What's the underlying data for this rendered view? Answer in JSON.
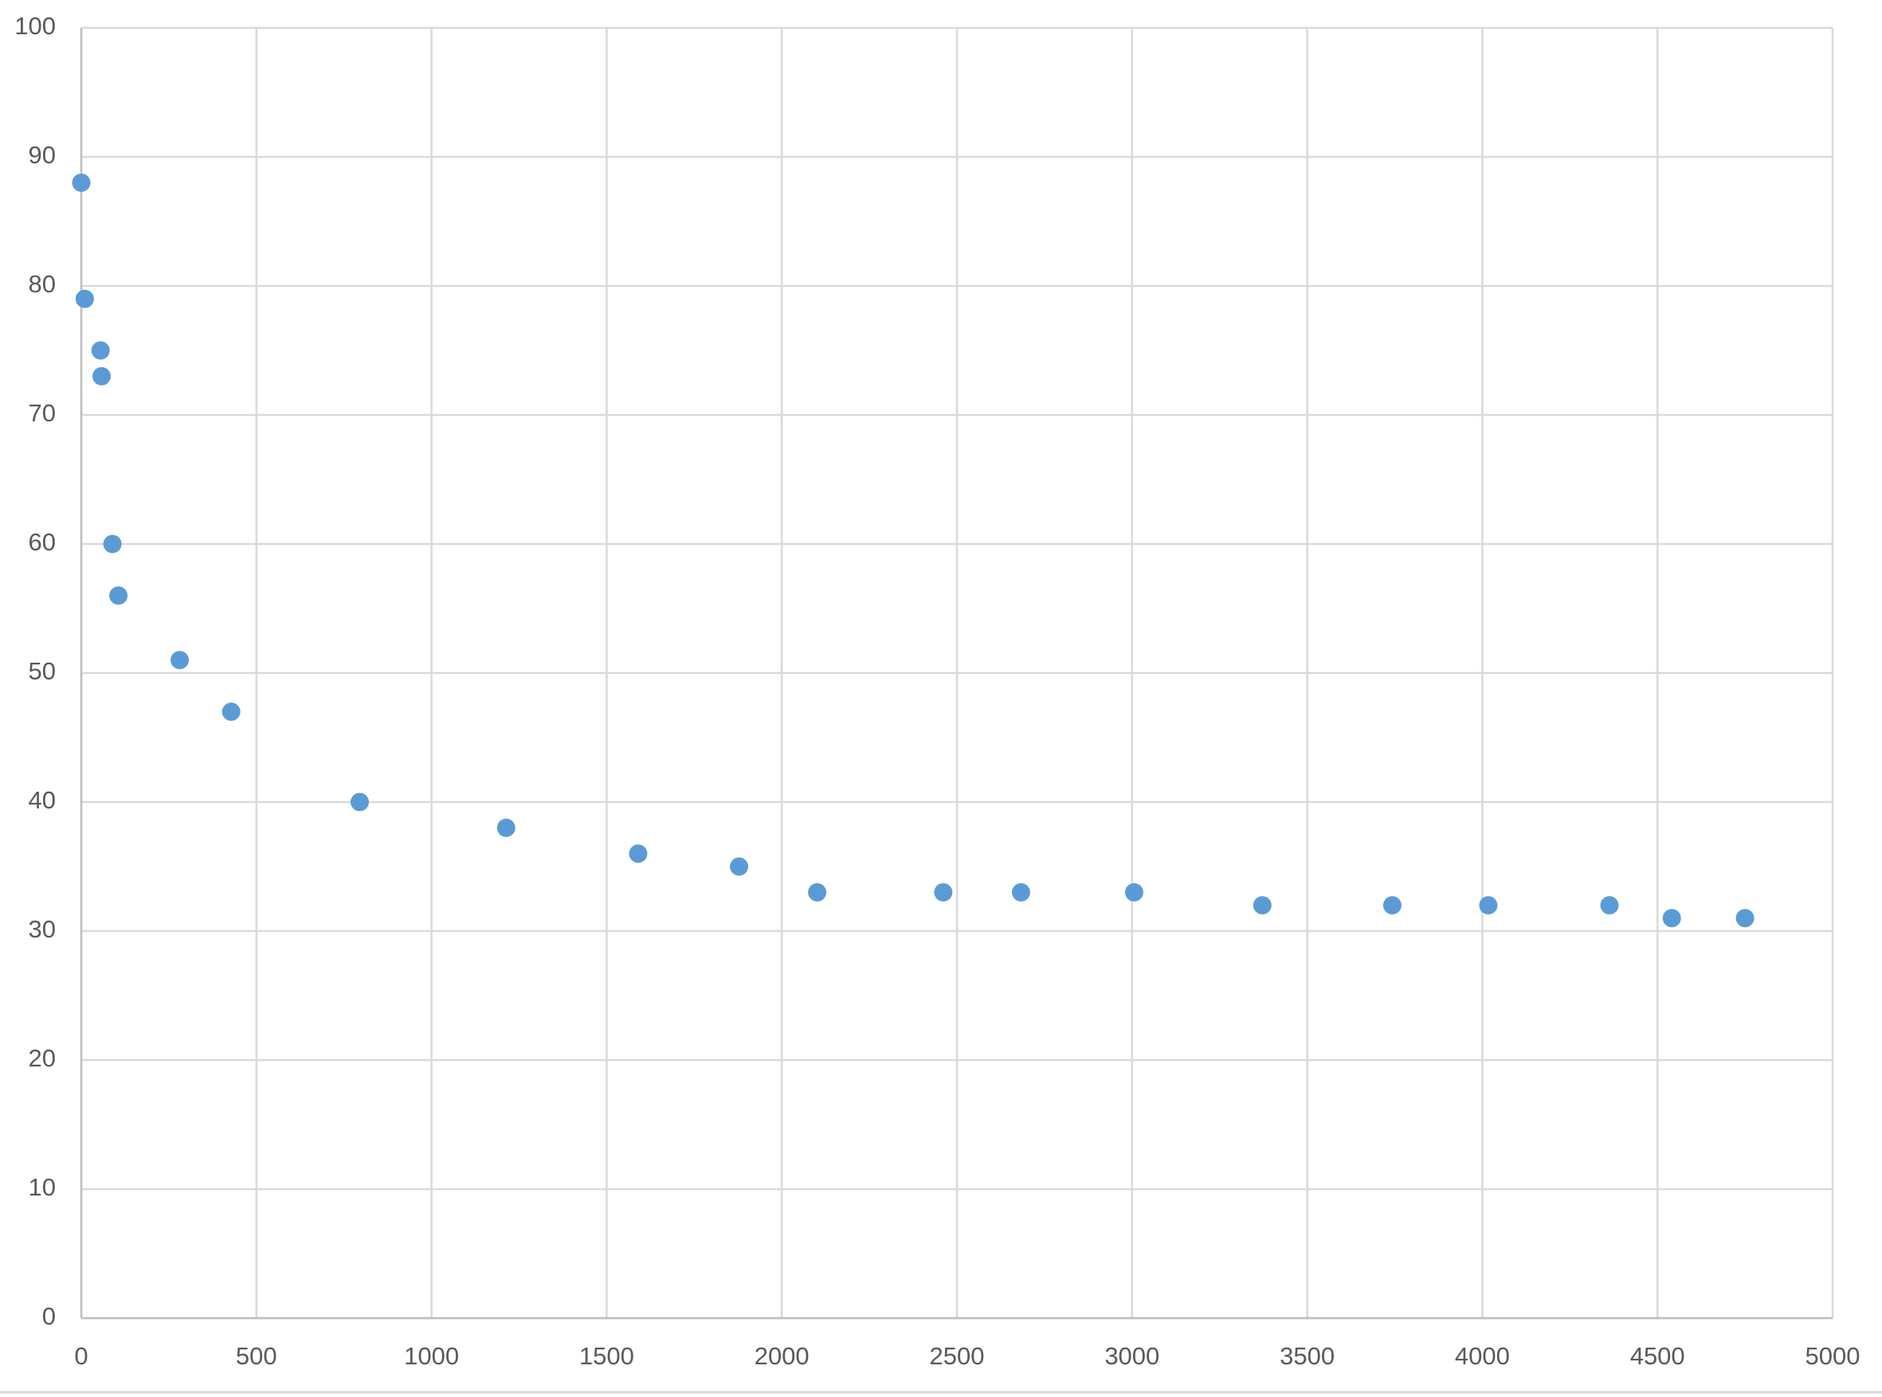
{
  "chart_data": {
    "type": "scatter",
    "series": [
      {
        "color": "#5b9bd5",
        "x": [
          0,
          10,
          55,
          58,
          89,
          106,
          281,
          428,
          795,
          1213,
          1590,
          1878,
          2101,
          2461,
          2683,
          3006,
          3372,
          3743,
          4017,
          4363,
          4541,
          4750
        ],
        "values": [
          88,
          79,
          75,
          73,
          60,
          56,
          51,
          47,
          40,
          38,
          36,
          35,
          33,
          33,
          33,
          33,
          32,
          32,
          32,
          32,
          31,
          31
        ]
      }
    ],
    "xlim": [
      0,
      5000
    ],
    "xticks": [
      0,
      500,
      1000,
      1500,
      2000,
      2500,
      3000,
      3500,
      4000,
      4500,
      5000
    ],
    "ylim": [
      0,
      100
    ],
    "yticks": [
      0,
      10,
      20,
      30,
      40,
      50,
      60,
      70,
      80,
      90,
      100
    ],
    "grid": true
  }
}
